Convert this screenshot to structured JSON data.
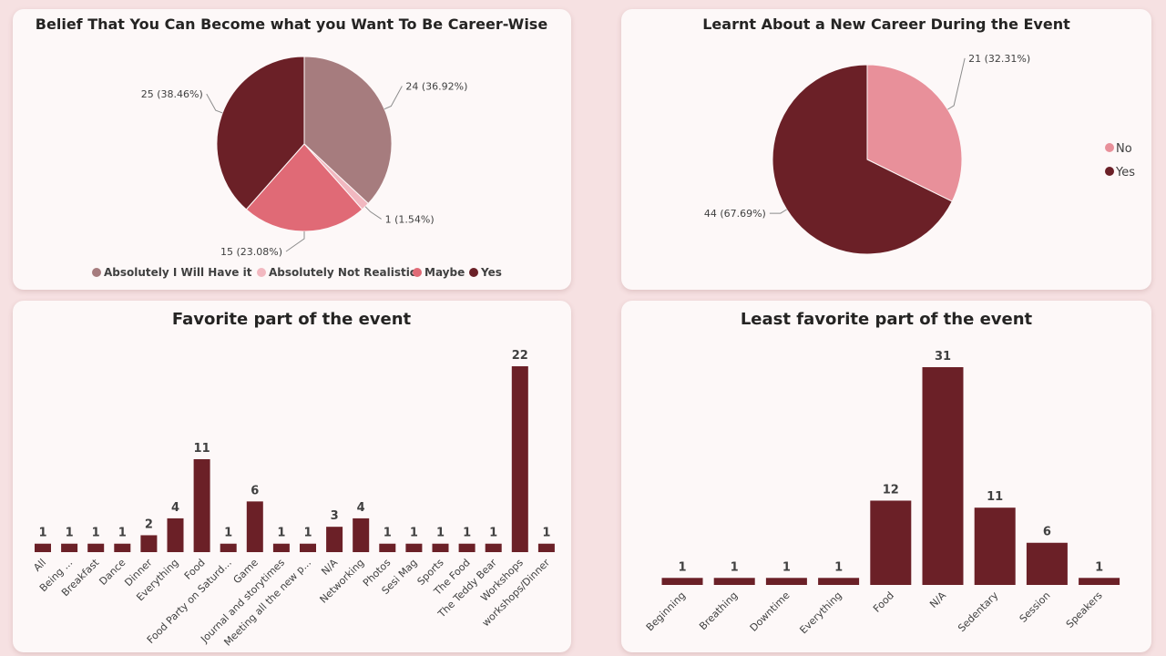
{
  "colors": {
    "absolutely": "#a67c7e",
    "not_realistic": "#f2b8c0",
    "maybe": "#e06a76",
    "yes": "#6b2027",
    "no": "#e8909a",
    "bar": "#6b2027"
  },
  "chart_data": [
    {
      "type": "pie",
      "title": "Belief That You Can Become what you Want To Be Career-Wise",
      "legend_position": "bottom",
      "slices": [
        {
          "name": "Absolutely I Will Have it",
          "value": 24,
          "label": "24 (36.92%)",
          "color": "#a67c7e"
        },
        {
          "name": "Absolutely Not Realistic",
          "value": 1,
          "label": "1 (1.54%)",
          "color": "#f2b8c0"
        },
        {
          "name": "Maybe",
          "value": 15,
          "label": "15 (23.08%)",
          "color": "#e06a76"
        },
        {
          "name": "Yes",
          "value": 25,
          "label": "25 (38.46%)",
          "color": "#6b2027"
        }
      ]
    },
    {
      "type": "pie",
      "title": "Learnt About a New Career During the Event",
      "legend_position": "right",
      "slices": [
        {
          "name": "No",
          "value": 21,
          "label": "21 (32.31%)",
          "color": "#e8909a"
        },
        {
          "name": "Yes",
          "value": 44,
          "label": "44 (67.69%)",
          "color": "#6b2027"
        }
      ]
    },
    {
      "type": "bar",
      "title": "Favorite part of the event",
      "categories": [
        "All",
        "Being ...",
        "Breakfast",
        "Dance",
        "Dinner",
        "Everything",
        "Food",
        "Food Party on Saturd...",
        "Game",
        "Journal and storytimes",
        "Meeting all the new p...",
        "N/A",
        "Networking",
        "Photos",
        "Sesi Mag",
        "Sports",
        "The Food",
        "The Teddy Bear",
        "Workshops",
        "workshops/Dinner"
      ],
      "values": [
        1,
        1,
        1,
        1,
        2,
        4,
        11,
        1,
        6,
        1,
        1,
        3,
        4,
        1,
        1,
        1,
        1,
        1,
        22,
        1
      ],
      "ylim": [
        0,
        22
      ]
    },
    {
      "type": "bar",
      "title": "Least favorite part of the event",
      "categories": [
        "Beginning",
        "Breathing",
        "Downtime",
        "Everything",
        "Food",
        "N/A",
        "Sedentary",
        "Session",
        "Speakers"
      ],
      "values": [
        1,
        1,
        1,
        1,
        12,
        31,
        11,
        6,
        1
      ],
      "ylim": [
        0,
        31
      ]
    }
  ]
}
